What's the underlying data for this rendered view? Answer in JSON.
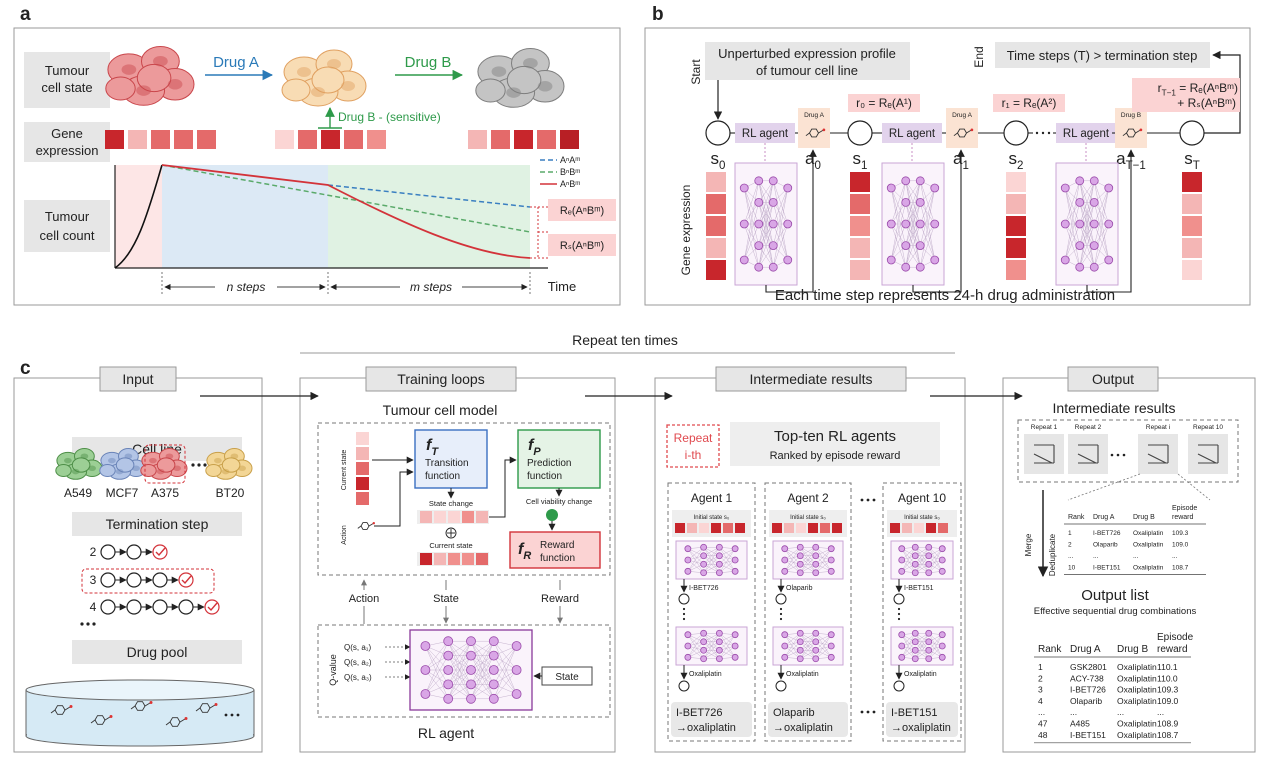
{
  "panel_a": {
    "label": "a",
    "tumour_cell_state": [
      "Tumour",
      "cell state"
    ],
    "drug_a": "Drug A",
    "drug_b": "Drug B",
    "drug_b_sensitive": "Drug B - (sensitive)",
    "gene_expression": [
      "Gene",
      "expression"
    ],
    "tumour_cell_count": [
      "Tumour",
      "cell count"
    ],
    "legend": [
      "AⁿAᵐ",
      "BⁿBᵐ",
      "AⁿBᵐ"
    ],
    "reward_e": "Rₑ(AⁿBᵐ)",
    "reward_s": "Rₛ(AⁿBᵐ)",
    "n_steps": "n steps",
    "m_steps": "m steps",
    "x_label": "Time"
  },
  "panel_b": {
    "label": "b",
    "start": "Start",
    "start_box": [
      "Unperturbed expression profile",
      "of tumour cell line"
    ],
    "end": "End",
    "end_box": "Time steps (T) > termination step",
    "rewards": [
      "r₀ = Rₑ(A¹)",
      "r₁ = Rₑ(A²)"
    ],
    "final_reward": {
      "base": "r",
      "sub": "T−1",
      "rest": " = Rₑ(AⁿBᵐ)",
      "line2": "+ Rₛ(AⁿBᵐ)"
    },
    "states": [
      {
        "base": "s",
        "sub": "0"
      },
      {
        "base": "s",
        "sub": "1"
      },
      {
        "base": "s",
        "sub": "2"
      },
      {
        "base": "s",
        "sub": "T"
      }
    ],
    "actions": [
      {
        "base": "a",
        "sub": "0"
      },
      {
        "base": "a",
        "sub": "1"
      },
      {
        "base": "a",
        "sub": "T−1"
      }
    ],
    "agents": [
      "RL agent",
      "RL agent",
      "RL agent"
    ],
    "drug_tags": [
      "Drug A",
      "Drug A",
      "Drug B"
    ],
    "y_label": "Gene expression",
    "caption": "Each time step represents 24-h drug administration"
  },
  "panel_c": {
    "label": "c",
    "repeat": "Repeat ten times",
    "input": {
      "header": "Input",
      "cell_line": "Cell line",
      "cell_lines": [
        "A549",
        "MCF7",
        "A375",
        "BT20"
      ],
      "termination_step": "Termination step",
      "steps": [
        "2",
        "3",
        "4"
      ],
      "drug_pool": "Drug pool"
    },
    "training": {
      "header": "Training loops",
      "model_title": "Tumour cell model",
      "current_state": "Current state",
      "action": "Action",
      "transition": {
        "base": "f",
        "sub": "T",
        "name": [
          "Transition",
          "function"
        ]
      },
      "prediction": {
        "base": "f",
        "sub": "P",
        "name": [
          "Prediction",
          "function"
        ]
      },
      "reward": {
        "base": "f",
        "sub": "R",
        "name": [
          "Reward",
          "function"
        ]
      },
      "state_change": "State change",
      "current_state_2": "Current state",
      "viability": "Cell viability change",
      "links": [
        "Action",
        "State",
        "Reward"
      ],
      "q_value": "Q-value",
      "q": [
        "Q(s, a₁)",
        "Q(s, a₂)",
        "Q(s, a₃)"
      ],
      "state_box": "State",
      "agent_title": "RL agent"
    },
    "intermediate": {
      "header": "Intermediate results",
      "repeat_tag": [
        "Repeat",
        "i-th"
      ],
      "title": "Top-ten RL agents",
      "subtitle": "Ranked by episode reward",
      "agents": [
        {
          "name": "Agent 1",
          "initial": "Initial state s₀",
          "drug_a": "I-BET726",
          "drug_b": "Oxaliplatin",
          "result": [
            "I-BET726",
            "→oxaliplatin"
          ]
        },
        {
          "name": "Agent 2",
          "initial": "Initial state s₀",
          "drug_a": "Olaparib",
          "drug_b": "Oxaliplatin",
          "result": [
            "Olaparib",
            "→oxaliplatin"
          ]
        },
        {
          "name": "Agent 10",
          "initial": "Initial state s₀",
          "drug_a": "I-BET151",
          "drug_b": "Oxaliplatin",
          "result": [
            "I-BET151",
            "→oxaliplatin"
          ]
        }
      ]
    },
    "output": {
      "header": "Output",
      "intermediate_title": "Intermediate results",
      "repeats": [
        "Repeat 1",
        "Repeat 2",
        "Repeat i",
        "Repeat 10"
      ],
      "merge": "Merge",
      "deduplicate": "Deduplicate",
      "mini_table": {
        "columns": [
          [
            "Rank"
          ],
          [
            "Drug A"
          ],
          [
            "Drug B"
          ],
          [
            "Episode",
            "reward"
          ]
        ],
        "rows": [
          [
            "1",
            "I-BET726",
            "Oxaliplatin",
            "109.3"
          ],
          [
            "2",
            "Olaparib",
            "Oxaliplatin",
            "109.0"
          ],
          [
            "...",
            "...",
            "...",
            "..."
          ],
          [
            "10",
            "I-BET151",
            "Oxaliplatin",
            "108.7"
          ]
        ]
      },
      "list_title": "Output list",
      "list_subtitle": "Effective sequential drug combinations",
      "table": {
        "columns": [
          [
            "Rank"
          ],
          [
            "Drug A"
          ],
          [
            "Drug B"
          ],
          [
            "Episode",
            "reward"
          ]
        ],
        "rows": [
          [
            "1",
            "GSK2801",
            "Oxaliplatin",
            "110.1"
          ],
          [
            "2",
            "ACY-738",
            "Oxaliplatin",
            "110.0"
          ],
          [
            "3",
            "I-BET726",
            "Oxaliplatin",
            "109.3"
          ],
          [
            "4",
            "Olaparib",
            "Oxaliplatin",
            "109.0"
          ],
          [
            "...",
            "...",
            "...",
            "..."
          ],
          [
            "47",
            "A485",
            "Oxaliplatin",
            "108.9"
          ],
          [
            "48",
            "I-BET151",
            "Oxaliplatin",
            "108.7"
          ]
        ]
      }
    }
  }
}
